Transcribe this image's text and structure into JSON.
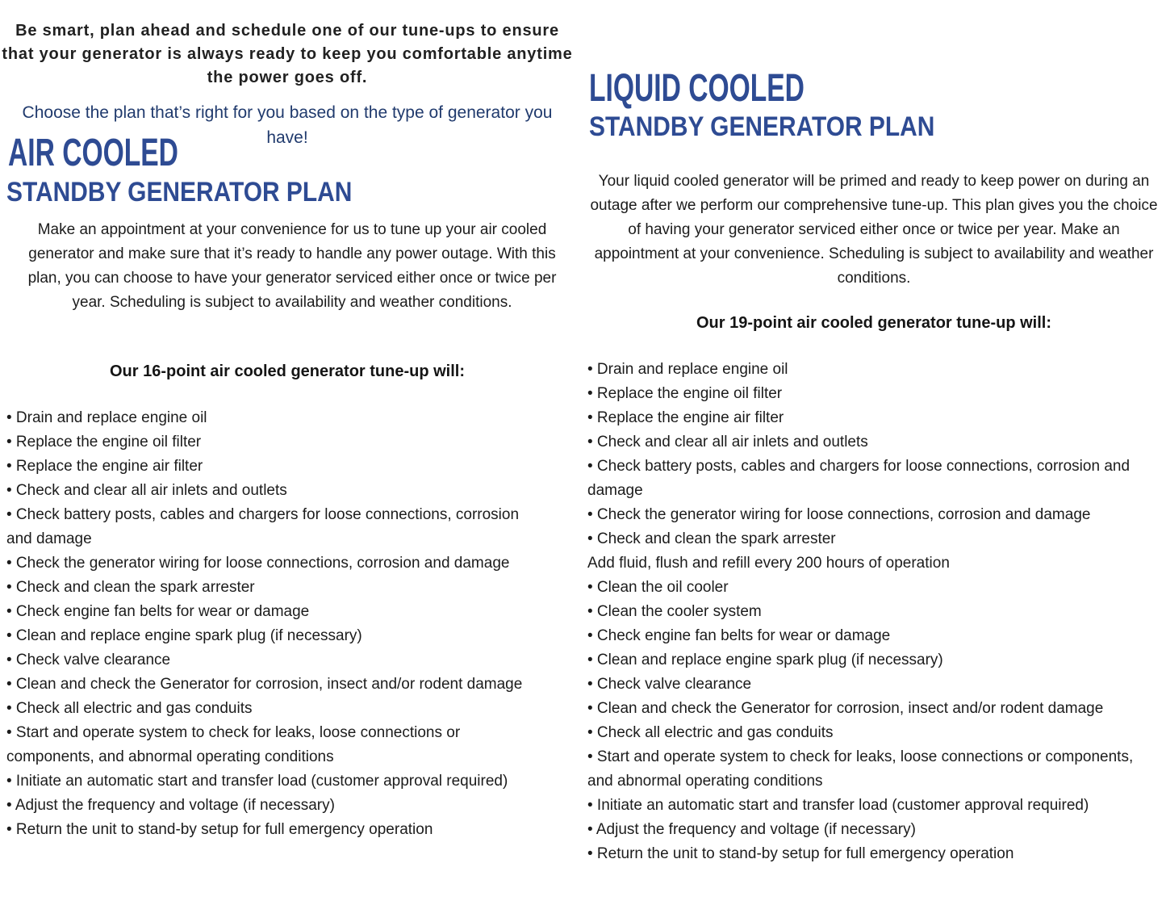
{
  "colors": {
    "heading_blue": "#2e4b93",
    "choose_text_blue": "#203a6d",
    "body_text": "#1c1c1c",
    "background": "#ffffff"
  },
  "intro": {
    "lead": "Be smart, plan ahead and schedule one of our tune-ups to ensure that your generator is always ready to keep you comfortable anytime the power goes off.",
    "choose": "Choose the plan that’s right for you based on the type of generator you have!"
  },
  "air_cooled": {
    "title": "AIR COOLED",
    "subtitle": "STANDBY GENERATOR PLAN",
    "description": "Make an appointment at your convenience for us to tune up your air cooled generator and make sure that it’s ready to handle any power outage. With this plan, you can choose to have your generator serviced either once or twice per year. Scheduling is subject to availability and weather conditions.",
    "list_heading": "Our 16-point air cooled generator tune-up will:",
    "items": [
      {
        "t": "Drain and replace engine oil",
        "b": true
      },
      {
        "t": "Replace the engine oil filter",
        "b": true
      },
      {
        "t": "Replace the engine air filter",
        "b": true
      },
      {
        "t": "Check and clear all air inlets and outlets",
        "b": true
      },
      {
        "t": "Check battery posts, cables and chargers for loose connections, corrosion and damage",
        "b": true
      },
      {
        "t": "Check the generator wiring for loose connections, corrosion and damage",
        "b": true
      },
      {
        "t": "Check and clean the spark arrester",
        "b": true
      },
      {
        "t": "Check engine fan belts for wear or damage",
        "b": true
      },
      {
        "t": "Clean and replace engine spark plug (if necessary)",
        "b": true
      },
      {
        "t": "Check valve clearance",
        "b": true
      },
      {
        "t": "Clean and check the Generator for corrosion, insect and/or rodent damage",
        "b": true
      },
      {
        "t": "Check all electric and gas conduits",
        "b": true
      },
      {
        "t": "Start and operate system to check for leaks, loose connections or components, and abnormal operating conditions",
        "b": true
      },
      {
        "t": "Initiate an automatic start and transfer load (customer approval required)",
        "b": true
      },
      {
        "t": "Adjust the frequency and voltage (if necessary)",
        "b": true
      },
      {
        "t": "Return the unit to stand-by setup for full emergency operation",
        "b": true
      }
    ]
  },
  "liquid_cooled": {
    "title": "LIQUID COOLED",
    "subtitle": "STANDBY GENERATOR PLAN",
    "description": "Your liquid cooled generator will be primed and ready to keep power on during an outage after we perform our comprehensive tune-up. This plan gives you the choice of having your generator serviced either once or twice per year. Make an appointment at your convenience. Scheduling is subject to availability and weather conditions.",
    "list_heading": "Our 19-point air cooled generator tune-up will:",
    "items": [
      {
        "t": "Drain and replace engine oil",
        "b": true
      },
      {
        "t": "Replace the engine oil filter",
        "b": true
      },
      {
        "t": "Replace the engine air filter",
        "b": true
      },
      {
        "t": "Check and clear all air inlets and outlets",
        "b": true
      },
      {
        "t": "Check battery posts, cables and chargers for loose connections, corrosion and damage",
        "b": true
      },
      {
        "t": "Check the generator wiring for loose connections, corrosion and damage",
        "b": true
      },
      {
        "t": "Check and clean the spark arrester",
        "b": true
      },
      {
        "t": "Add fluid, flush and refill every 200 hours of operation",
        "b": false
      },
      {
        "t": "Clean the oil cooler",
        "b": true
      },
      {
        "t": "Clean the cooler system",
        "b": true
      },
      {
        "t": "Check engine fan belts for wear or damage",
        "b": true
      },
      {
        "t": "Clean and replace engine spark plug (if necessary)",
        "b": true
      },
      {
        "t": "Check valve clearance",
        "b": true
      },
      {
        "t": "Clean and check the Generator for corrosion, insect and/or rodent damage",
        "b": true
      },
      {
        "t": "Check all electric and gas conduits",
        "b": true
      },
      {
        "t": "Start and operate system to check for leaks, loose connections or components, and abnormal operating conditions",
        "b": true
      },
      {
        "t": "Initiate an automatic start and transfer load (customer approval required)",
        "b": true
      },
      {
        "t": "Adjust the frequency and voltage (if necessary)",
        "b": true
      },
      {
        "t": "Return the unit to stand-by setup for full emergency operation",
        "b": true
      }
    ]
  }
}
